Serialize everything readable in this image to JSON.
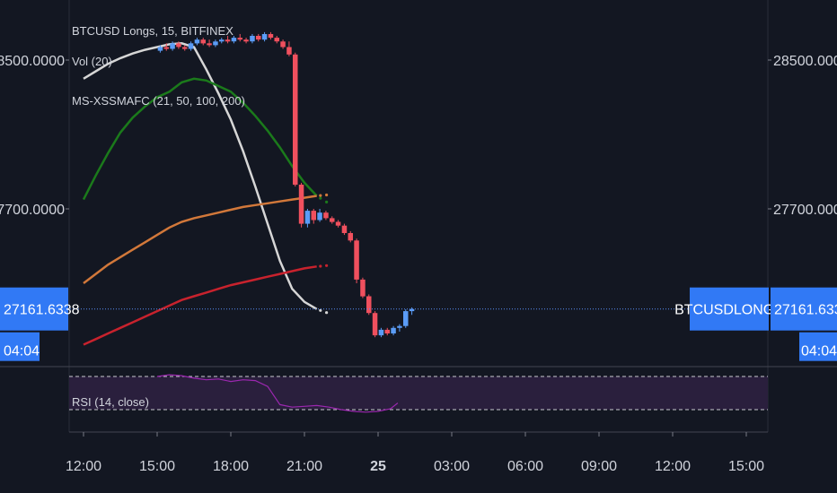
{
  "legend": {
    "symbol": "BTCUSD Longs, 15, BITFINEX",
    "volume": "Vol (20)",
    "ma": "MS-XSSMAFC (21, 50, 100, 200)",
    "rsi": "RSI (14, close)"
  },
  "colors": {
    "background": "#131722",
    "up": "#5b9cf6",
    "down": "#f0505e",
    "sma21": "#d6d6d6",
    "sma50": "#1b7a1b",
    "sma100": "#d2783a",
    "sma200": "#c8222d",
    "rsi": "#9c27b0",
    "price_line": "#2962ff",
    "badge": "#3179f5"
  },
  "chart_data": {
    "type": "candlestick",
    "title": "BTCUSD Longs, 15, BITFINEX",
    "price_axis_ticks": [
      "28500.0000",
      "27700.0000"
    ],
    "price_axis_values": [
      28500,
      27700
    ],
    "time_axis_labels": [
      "12:00",
      "15:00",
      "18:00",
      "21:00",
      "25",
      "03:00",
      "06:00",
      "09:00",
      "12:00",
      "15:00"
    ],
    "current_price": "27161.6338",
    "current_price_value": 27161.6338,
    "series_label": "BTCUSDLONGS",
    "countdown": "04:04",
    "candles_start_hour": 12.0,
    "candle_interval_hours": 0.25,
    "candles": [
      [
        28550,
        28580,
        28540,
        28570
      ],
      [
        28570,
        28590,
        28550,
        28560
      ],
      [
        28560,
        28600,
        28550,
        28590
      ],
      [
        28590,
        28600,
        28560,
        28570
      ],
      [
        28570,
        28580,
        28550,
        28560
      ],
      [
        28560,
        28600,
        28550,
        28590
      ],
      [
        28590,
        28620,
        28580,
        28610
      ],
      [
        28610,
        28620,
        28580,
        28590
      ],
      [
        28590,
        28610,
        28570,
        28580
      ],
      [
        28580,
        28610,
        28570,
        28600
      ],
      [
        28600,
        28620,
        28590,
        28610
      ],
      [
        28610,
        28630,
        28590,
        28600
      ],
      [
        28600,
        28630,
        28590,
        28620
      ],
      [
        28620,
        28640,
        28600,
        28610
      ],
      [
        28610,
        28620,
        28590,
        28600
      ],
      [
        28600,
        28640,
        28590,
        28630
      ],
      [
        28630,
        28640,
        28600,
        28610
      ],
      [
        28610,
        28650,
        28600,
        28640
      ],
      [
        28640,
        28650,
        28610,
        28620
      ],
      [
        28620,
        28630,
        28590,
        28600
      ],
      [
        28600,
        28610,
        28560,
        28570
      ],
      [
        28570,
        28600,
        28520,
        28530
      ],
      [
        28530,
        28540,
        27820,
        27830
      ],
      [
        27830,
        27840,
        27600,
        27620
      ],
      [
        27620,
        27700,
        27600,
        27690
      ],
      [
        27690,
        27700,
        27620,
        27640
      ],
      [
        27640,
        27700,
        27630,
        27680
      ],
      [
        27680,
        27690,
        27640,
        27650
      ],
      [
        27650,
        27660,
        27620,
        27630
      ],
      [
        27630,
        27640,
        27600,
        27610
      ],
      [
        27610,
        27620,
        27560,
        27570
      ],
      [
        27570,
        27580,
        27520,
        27530
      ],
      [
        27530,
        27540,
        27300,
        27320
      ],
      [
        27320,
        27330,
        27220,
        27230
      ],
      [
        27230,
        27240,
        27130,
        27140
      ],
      [
        27140,
        27150,
        27010,
        27020
      ],
      [
        27020,
        27060,
        27010,
        27050
      ],
      [
        27050,
        27060,
        27020,
        27030
      ],
      [
        27030,
        27070,
        27020,
        27060
      ],
      [
        27060,
        27080,
        27040,
        27070
      ],
      [
        27070,
        27160,
        27060,
        27150
      ],
      [
        27150,
        27170,
        27130,
        27161
      ]
    ],
    "sma_series": [
      {
        "name": "21",
        "points": [
          [
            12.0,
            28400
          ],
          [
            12.5,
            28440
          ],
          [
            13.0,
            28480
          ],
          [
            13.5,
            28510
          ],
          [
            14.0,
            28535
          ],
          [
            14.5,
            28555
          ],
          [
            15.0,
            28570
          ],
          [
            15.5,
            28585
          ],
          [
            16.0,
            28590
          ],
          [
            16.5,
            28570
          ],
          [
            17.0,
            28450
          ],
          [
            17.5,
            28320
          ],
          [
            18.0,
            28180
          ],
          [
            18.5,
            28010
          ],
          [
            19.0,
            27820
          ],
          [
            19.5,
            27620
          ],
          [
            20.0,
            27420
          ],
          [
            20.5,
            27270
          ],
          [
            21.0,
            27200
          ],
          [
            21.5,
            27161
          ]
        ]
      },
      {
        "name": "50",
        "points": [
          [
            12.0,
            27750
          ],
          [
            12.5,
            27880
          ],
          [
            13.0,
            28000
          ],
          [
            13.5,
            28110
          ],
          [
            14.0,
            28190
          ],
          [
            14.5,
            28250
          ],
          [
            15.0,
            28300
          ],
          [
            15.5,
            28330
          ],
          [
            16.0,
            28380
          ],
          [
            16.5,
            28400
          ],
          [
            17.0,
            28390
          ],
          [
            17.5,
            28360
          ],
          [
            18.0,
            28330
          ],
          [
            18.5,
            28270
          ],
          [
            19.0,
            28200
          ],
          [
            19.5,
            28120
          ],
          [
            20.0,
            28030
          ],
          [
            20.5,
            27930
          ],
          [
            21.0,
            27840
          ],
          [
            21.5,
            27770
          ]
        ]
      },
      {
        "name": "100",
        "points": [
          [
            12.0,
            27300
          ],
          [
            12.5,
            27350
          ],
          [
            13.0,
            27400
          ],
          [
            13.5,
            27440
          ],
          [
            14.0,
            27480
          ],
          [
            14.5,
            27520
          ],
          [
            15.0,
            27560
          ],
          [
            15.5,
            27600
          ],
          [
            16.0,
            27630
          ],
          [
            16.5,
            27650
          ],
          [
            17.0,
            27665
          ],
          [
            17.5,
            27680
          ],
          [
            18.0,
            27695
          ],
          [
            18.5,
            27710
          ],
          [
            19.0,
            27720
          ],
          [
            19.5,
            27730
          ],
          [
            20.0,
            27740
          ],
          [
            20.5,
            27750
          ],
          [
            21.0,
            27760
          ],
          [
            21.5,
            27770
          ]
        ]
      },
      {
        "name": "200",
        "points": [
          [
            12.0,
            26970
          ],
          [
            12.5,
            27000
          ],
          [
            13.0,
            27030
          ],
          [
            13.5,
            27060
          ],
          [
            14.0,
            27090
          ],
          [
            14.5,
            27120
          ],
          [
            15.0,
            27150
          ],
          [
            15.5,
            27180
          ],
          [
            16.0,
            27210
          ],
          [
            16.5,
            27230
          ],
          [
            17.0,
            27250
          ],
          [
            17.5,
            27270
          ],
          [
            18.0,
            27290
          ],
          [
            18.5,
            27305
          ],
          [
            19.0,
            27320
          ],
          [
            19.5,
            27335
          ],
          [
            20.0,
            27350
          ],
          [
            20.5,
            27365
          ],
          [
            21.0,
            27380
          ],
          [
            21.5,
            27390
          ]
        ]
      }
    ],
    "projection_start_hour": 20.5,
    "projection_end_hour": 21.6,
    "rsi_points": [
      [
        12.0,
        70
      ],
      [
        12.5,
        72
      ],
      [
        13.0,
        71
      ],
      [
        13.5,
        68
      ],
      [
        14.0,
        66
      ],
      [
        14.5,
        67
      ],
      [
        15.0,
        64
      ],
      [
        15.5,
        66
      ],
      [
        16.0,
        65
      ],
      [
        16.5,
        58
      ],
      [
        17.0,
        36
      ],
      [
        17.5,
        33
      ],
      [
        18.0,
        34
      ],
      [
        18.5,
        35
      ],
      [
        19.0,
        33
      ],
      [
        19.5,
        30
      ],
      [
        20.0,
        28
      ],
      [
        20.5,
        27
      ],
      [
        21.0,
        28
      ],
      [
        21.5,
        31
      ],
      [
        21.8,
        38
      ]
    ]
  }
}
